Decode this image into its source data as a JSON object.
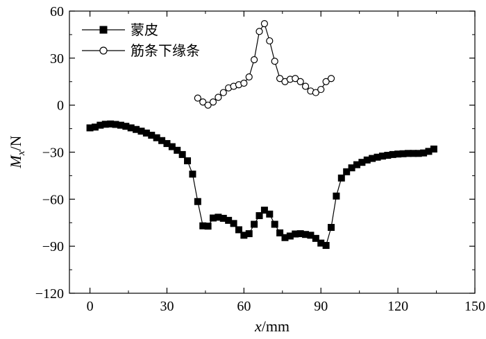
{
  "chart_data": {
    "type": "line",
    "xlabel": {
      "var": "x",
      "unit": "/mm"
    },
    "ylabel": {
      "var": "M",
      "sub": "x",
      "unit": "/N"
    },
    "xlim": [
      -8,
      150
    ],
    "ylim": [
      -120,
      60
    ],
    "x_ticks": [
      0,
      30,
      60,
      90,
      120,
      150
    ],
    "x_tick_labels": [
      "0",
      "30",
      "60",
      "90",
      "120",
      "150"
    ],
    "y_ticks": [
      -120,
      -90,
      -60,
      -30,
      0,
      30,
      60
    ],
    "y_tick_labels": [
      "−120",
      "−90",
      "−60",
      "−30",
      "0",
      "30",
      "60"
    ],
    "legend_position": "top-left",
    "series": [
      {
        "name": "蒙皮",
        "marker": "square-filled",
        "points": [
          [
            0,
            -14.5
          ],
          [
            2,
            -14
          ],
          [
            4,
            -12.8
          ],
          [
            6,
            -12.2
          ],
          [
            8,
            -12
          ],
          [
            10,
            -12.3
          ],
          [
            12,
            -12.8
          ],
          [
            14,
            -13.5
          ],
          [
            16,
            -14.5
          ],
          [
            18,
            -15.5
          ],
          [
            20,
            -16.6
          ],
          [
            22,
            -17.8
          ],
          [
            24,
            -19.2
          ],
          [
            26,
            -20.8
          ],
          [
            28,
            -22.6
          ],
          [
            30,
            -24.5
          ],
          [
            32,
            -26.5
          ],
          [
            34,
            -28.8
          ],
          [
            36,
            -31.5
          ],
          [
            38,
            -35.5
          ],
          [
            40,
            -44
          ],
          [
            42,
            -61.5
          ],
          [
            44,
            -77
          ],
          [
            46,
            -77.2
          ],
          [
            48,
            -72
          ],
          [
            50,
            -71.5
          ],
          [
            52,
            -72.2
          ],
          [
            54,
            -73.5
          ],
          [
            56,
            -75.5
          ],
          [
            58,
            -79.5
          ],
          [
            60,
            -83
          ],
          [
            62,
            -82
          ],
          [
            64,
            -76
          ],
          [
            66,
            -70.5
          ],
          [
            68,
            -67
          ],
          [
            70,
            -69.5
          ],
          [
            72,
            -76
          ],
          [
            74,
            -81.5
          ],
          [
            76,
            -84.5
          ],
          [
            78,
            -83.5
          ],
          [
            80,
            -82.2
          ],
          [
            82,
            -82
          ],
          [
            84,
            -82.5
          ],
          [
            86,
            -83
          ],
          [
            88,
            -85
          ],
          [
            90,
            -88
          ],
          [
            92,
            -89.5
          ],
          [
            94,
            -78
          ],
          [
            96,
            -58
          ],
          [
            98,
            -46.5
          ],
          [
            100,
            -42.5
          ],
          [
            102,
            -40
          ],
          [
            104,
            -38
          ],
          [
            106,
            -36.5
          ],
          [
            108,
            -35
          ],
          [
            110,
            -34
          ],
          [
            112,
            -33.2
          ],
          [
            114,
            -32.5
          ],
          [
            116,
            -32
          ],
          [
            118,
            -31.5
          ],
          [
            120,
            -31.2
          ],
          [
            122,
            -31
          ],
          [
            124,
            -30.8
          ],
          [
            126,
            -30.8
          ],
          [
            128,
            -30.8
          ],
          [
            130,
            -30.5
          ],
          [
            132,
            -29.5
          ],
          [
            134,
            -28
          ]
        ]
      },
      {
        "name": "筋条下缘条",
        "marker": "circle-open",
        "points": [
          [
            42,
            4.5
          ],
          [
            44,
            2
          ],
          [
            46,
            0
          ],
          [
            48,
            2
          ],
          [
            50,
            5
          ],
          [
            52,
            8
          ],
          [
            54,
            11
          ],
          [
            56,
            12
          ],
          [
            58,
            13
          ],
          [
            60,
            14
          ],
          [
            62,
            18
          ],
          [
            64,
            29
          ],
          [
            66,
            47
          ],
          [
            68,
            52
          ],
          [
            70,
            41
          ],
          [
            72,
            28
          ],
          [
            74,
            17
          ],
          [
            76,
            15
          ],
          [
            78,
            16.5
          ],
          [
            80,
            17
          ],
          [
            82,
            15
          ],
          [
            84,
            12
          ],
          [
            86,
            9
          ],
          [
            88,
            8
          ],
          [
            90,
            10
          ],
          [
            92,
            15
          ],
          [
            94,
            17
          ]
        ]
      }
    ]
  }
}
